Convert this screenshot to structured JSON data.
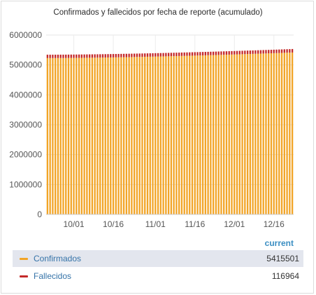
{
  "panel": {
    "title": "Confirmados y fallecidos por fecha de reporte (acumulado)"
  },
  "legend": {
    "header": "current",
    "items": [
      {
        "label": "Confirmados",
        "value": "5415501",
        "color": "#f2a527"
      },
      {
        "label": "Fallecidos",
        "value": "116964",
        "color": "#c42a2a"
      }
    ]
  },
  "chart_data": {
    "type": "bar",
    "stacked": true,
    "title": "Confirmados y fallecidos por fecha de reporte (acumulado)",
    "xlabel": "",
    "ylabel": "",
    "ylim": [
      0,
      6000000
    ],
    "yticks": [
      "0",
      "1000000",
      "2000000",
      "3000000",
      "4000000",
      "5000000",
      "6000000"
    ],
    "xticks": [
      "10/01",
      "10/16",
      "11/01",
      "11/16",
      "12/01",
      "12/16"
    ],
    "grid": true,
    "x_start": "09/21",
    "x_end": "12/23",
    "series": [
      {
        "name": "Confirmados",
        "color": "#f2a527",
        "start": 5230000,
        "end": 5415501
      },
      {
        "name": "Fallecidos",
        "color": "#c42a2a",
        "start": 112000,
        "end": 116964
      }
    ]
  }
}
